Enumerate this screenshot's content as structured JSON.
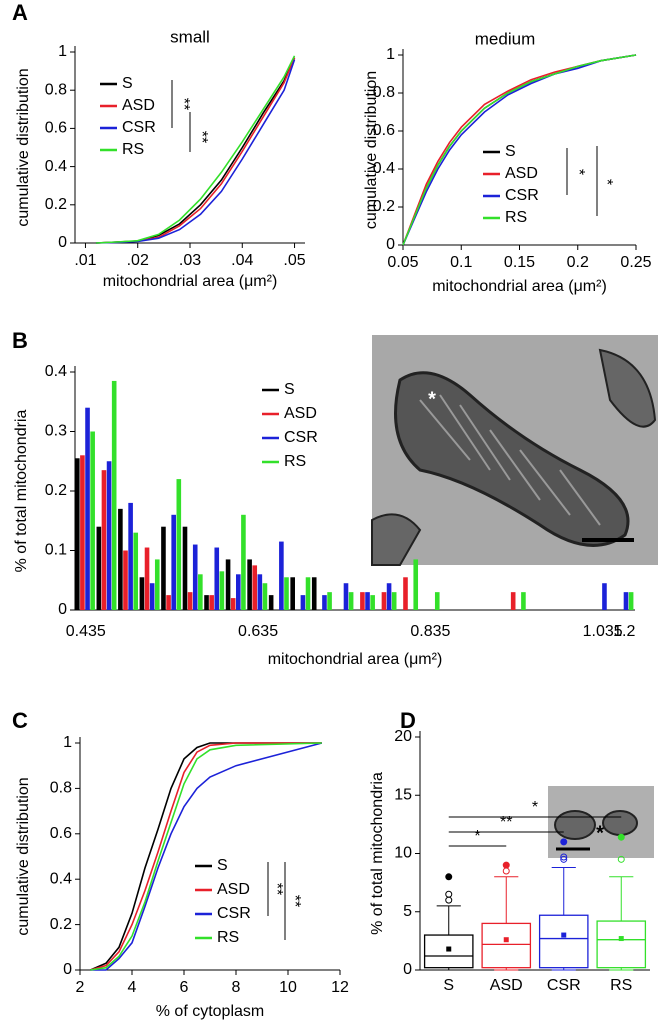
{
  "chart_data": [
    {
      "type": "line",
      "panel": "A",
      "title": "small",
      "xlabel": "mitochondrial area (μm²)",
      "ylabel": "cumulative distribution",
      "x": [
        0.012,
        0.016,
        0.02,
        0.024,
        0.028,
        0.032,
        0.036,
        0.04,
        0.044,
        0.048,
        0.05
      ],
      "series": [
        {
          "name": "S",
          "color": "#000000",
          "values": [
            0,
            0.005,
            0.01,
            0.04,
            0.1,
            0.2,
            0.33,
            0.5,
            0.68,
            0.85,
            0.97
          ]
        },
        {
          "name": "ASD",
          "color": "#e8202a",
          "values": [
            0,
            0.004,
            0.01,
            0.03,
            0.09,
            0.18,
            0.31,
            0.48,
            0.66,
            0.84,
            0.97
          ]
        },
        {
          "name": "CSR",
          "color": "#1c22d8",
          "values": [
            0,
            0.003,
            0.008,
            0.025,
            0.07,
            0.15,
            0.27,
            0.44,
            0.62,
            0.8,
            0.96
          ]
        },
        {
          "name": "RS",
          "color": "#33e02a",
          "values": [
            0,
            0.005,
            0.012,
            0.045,
            0.12,
            0.23,
            0.37,
            0.53,
            0.7,
            0.87,
            0.98
          ]
        }
      ],
      "xlim": [
        0.008,
        0.052
      ],
      "xticks": [
        {
          "value": 0.01,
          "label": ".01"
        },
        {
          "value": 0.02,
          "label": ".02"
        },
        {
          "value": 0.03,
          "label": ".03"
        },
        {
          "value": 0.04,
          "label": ".04"
        },
        {
          "value": 0.05,
          "label": ".05"
        }
      ],
      "ylim": [
        0,
        1
      ],
      "yticks": [
        0,
        0.2,
        0.4,
        0.6,
        0.8,
        1
      ],
      "annotations": [
        "**",
        "**"
      ]
    },
    {
      "type": "line",
      "panel": "",
      "title": "medium",
      "xlabel": "mitochondrial area (μm²)",
      "ylabel": "cumulative distribution",
      "x": [
        0.05,
        0.06,
        0.07,
        0.08,
        0.09,
        0.1,
        0.12,
        0.14,
        0.16,
        0.18,
        0.2,
        0.22,
        0.25
      ],
      "series": [
        {
          "name": "S",
          "color": "#000000",
          "values": [
            0,
            0.15,
            0.3,
            0.42,
            0.52,
            0.6,
            0.72,
            0.8,
            0.86,
            0.9,
            0.94,
            0.97,
            1
          ]
        },
        {
          "name": "ASD",
          "color": "#e8202a",
          "values": [
            0,
            0.16,
            0.32,
            0.44,
            0.54,
            0.62,
            0.74,
            0.81,
            0.87,
            0.91,
            0.94,
            0.97,
            1
          ]
        },
        {
          "name": "CSR",
          "color": "#1c22d8",
          "values": [
            0,
            0.14,
            0.28,
            0.4,
            0.5,
            0.58,
            0.7,
            0.79,
            0.85,
            0.9,
            0.93,
            0.97,
            1
          ]
        },
        {
          "name": "RS",
          "color": "#33e02a",
          "values": [
            0,
            0.15,
            0.3,
            0.42,
            0.52,
            0.6,
            0.72,
            0.8,
            0.86,
            0.9,
            0.94,
            0.97,
            1
          ]
        }
      ],
      "xlim": [
        0.05,
        0.25
      ],
      "xticks": [
        0.05,
        0.1,
        0.15,
        0.2,
        0.25
      ],
      "ylim": [
        0,
        1
      ],
      "yticks": [
        0,
        0.2,
        0.4,
        0.6,
        0.8,
        1
      ],
      "annotations": [
        "*",
        "*"
      ]
    },
    {
      "type": "bar",
      "panel": "B",
      "xlabel": "mitochondrial area (μm²)",
      "ylabel": "% of total mitochondria",
      "inset_text": "*",
      "categories": [
        "0.435",
        null,
        null,
        null,
        null,
        null,
        null,
        null,
        "0.635",
        null,
        null,
        null,
        null,
        null,
        null,
        null,
        "0.835",
        null,
        null,
        null,
        null,
        null,
        null,
        null,
        "1.035",
        "1.2"
      ],
      "series": [
        {
          "name": "S",
          "color": "#000000",
          "values": [
            0.255,
            0.14,
            0.17,
            0.055,
            0.14,
            0.14,
            0.025,
            0.085,
            0.085,
            0.025,
            0.055,
            0.055,
            0,
            0,
            0,
            0,
            0,
            0,
            0,
            0,
            0,
            0,
            0,
            0,
            0,
            0
          ]
        },
        {
          "name": "ASD",
          "color": "#e8202a",
          "values": [
            0.26,
            0.235,
            0.1,
            0.105,
            0.025,
            0.03,
            0.025,
            0.02,
            0.075,
            0,
            0,
            0,
            0,
            0.03,
            0.03,
            0.055,
            0,
            0,
            0,
            0,
            0.03,
            0,
            0,
            0,
            0,
            0
          ]
        },
        {
          "name": "CSR",
          "color": "#1c22d8",
          "values": [
            0.34,
            0.25,
            0.18,
            0.045,
            0.16,
            0.11,
            0.105,
            0.06,
            0.06,
            0.115,
            0.025,
            0.025,
            0.045,
            0.03,
            0.045,
            0,
            0,
            0,
            0,
            0,
            0,
            0,
            0,
            0,
            0.045,
            0.03
          ]
        },
        {
          "name": "RS",
          "color": "#33e02a",
          "values": [
            0.3,
            0.385,
            0.13,
            0.085,
            0.22,
            0.06,
            0.065,
            0.16,
            0.045,
            0.055,
            0.055,
            0.03,
            0.03,
            0.025,
            0.03,
            0.085,
            0.03,
            0,
            0,
            0,
            0.03,
            0,
            0,
            0,
            0,
            0.03
          ]
        }
      ],
      "ylim": [
        0,
        0.4
      ],
      "yticks": [
        0,
        0.1,
        0.2,
        0.3,
        0.4
      ]
    },
    {
      "type": "line",
      "panel": "C",
      "xlabel": "% of cytoplasm",
      "ylabel": "cumulative distribution",
      "x": [
        2.4,
        3,
        3.5,
        4,
        4.5,
        5,
        5.5,
        6,
        6.5,
        7,
        8,
        11.3
      ],
      "series": [
        {
          "name": "S",
          "color": "#000000",
          "values": [
            0,
            0.03,
            0.1,
            0.25,
            0.45,
            0.62,
            0.8,
            0.93,
            0.98,
            1,
            1,
            1
          ]
        },
        {
          "name": "ASD",
          "color": "#e8202a",
          "values": [
            0,
            0.02,
            0.08,
            0.2,
            0.35,
            0.52,
            0.7,
            0.87,
            0.96,
            0.99,
            1,
            1
          ]
        },
        {
          "name": "CSR",
          "color": "#1c22d8",
          "values": [
            0,
            0,
            0.05,
            0.12,
            0.28,
            0.45,
            0.6,
            0.72,
            0.8,
            0.85,
            0.9,
            1
          ]
        },
        {
          "name": "RS",
          "color": "#33e02a",
          "values": [
            0,
            0.01,
            0.06,
            0.15,
            0.3,
            0.48,
            0.65,
            0.82,
            0.93,
            0.97,
            0.99,
            1
          ]
        }
      ],
      "xlim": [
        2,
        12
      ],
      "xticks": [
        2,
        4,
        6,
        8,
        10,
        12
      ],
      "ylim": [
        0,
        1
      ],
      "yticks": [
        0,
        0.2,
        0.4,
        0.6,
        0.8,
        1
      ],
      "annotations": [
        "**",
        "**"
      ]
    },
    {
      "type": "box",
      "panel": "D",
      "ylabel": "% of total mitochondria",
      "inset_text": "*",
      "categories": [
        "S",
        "ASD",
        "CSR",
        "RS"
      ],
      "colors": [
        "#000000",
        "#e8202a",
        "#1c22d8",
        "#33e02a"
      ],
      "boxes": [
        {
          "min": 0,
          "q1": 0.2,
          "median": 1.2,
          "q3": 3,
          "max": 5.5,
          "mean": 1.8,
          "outliers": [
            6,
            6.5,
            8
          ]
        },
        {
          "min": 0,
          "q1": 0.2,
          "median": 2.2,
          "q3": 4,
          "max": 8,
          "mean": 2.6,
          "outliers": [
            8.5,
            9
          ]
        },
        {
          "min": 0,
          "q1": 0.2,
          "median": 2.7,
          "q3": 4.7,
          "max": 8.8,
          "mean": 3,
          "outliers": [
            9.5,
            9.7,
            11
          ]
        },
        {
          "min": 0,
          "q1": 0.2,
          "median": 2.6,
          "q3": 4.2,
          "max": 8,
          "mean": 2.7,
          "outliers": [
            9.5,
            11.4
          ]
        }
      ],
      "ylim": [
        0,
        20
      ],
      "yticks": [
        0,
        5,
        10,
        15,
        20
      ],
      "annotations": [
        "*",
        "**",
        "*"
      ]
    }
  ]
}
